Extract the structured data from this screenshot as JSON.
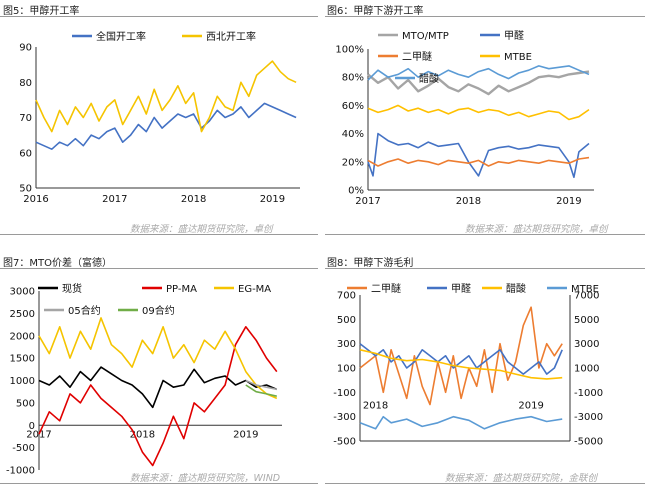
{
  "titles": {
    "p5": "图5：甲醇开工率",
    "p6": "图6：甲醇下游开工率",
    "p7": "图7：MTO价差（富德）",
    "p8": "图8：甲醇下游毛利"
  },
  "sources": {
    "top_left": "数据来源：盛达期货研究院，卓创",
    "top_right": "数据来源：盛达期货研究院，卓创",
    "bottom_left": "数据来源：盛达期货研究院，WIND",
    "bottom_right": "数据来源：盛达期货研究院，金联创"
  },
  "chart_data": [
    {
      "id": "p5",
      "type": "line",
      "ylim": [
        50,
        90
      ],
      "yticks": [
        "50",
        "60",
        "70",
        "80",
        "90"
      ],
      "xticks": [
        "2016",
        "2017",
        "2018",
        "2019"
      ],
      "xrange": [
        2016,
        2019.35
      ],
      "series": [
        {
          "name": "全国开工率",
          "color": "#4472c4",
          "x": [
            2016,
            2016.1,
            2016.2,
            2016.3,
            2016.4,
            2016.5,
            2016.6,
            2016.7,
            2016.8,
            2016.9,
            2017,
            2017.1,
            2017.2,
            2017.3,
            2017.4,
            2017.5,
            2017.6,
            2017.7,
            2017.8,
            2017.9,
            2018,
            2018.1,
            2018.2,
            2018.3,
            2018.4,
            2018.5,
            2018.6,
            2018.7,
            2018.8,
            2018.9,
            2019,
            2019.1,
            2019.2,
            2019.3
          ],
          "y": [
            63,
            62,
            61,
            63,
            62,
            64,
            62,
            65,
            64,
            66,
            67,
            63,
            65,
            68,
            66,
            70,
            67,
            69,
            71,
            70,
            71,
            67,
            69,
            72,
            70,
            71,
            73,
            70,
            72,
            74,
            73,
            72,
            71,
            70
          ]
        },
        {
          "name": "西北开工率",
          "color": "#f5c400",
          "x": [
            2016,
            2016.1,
            2016.2,
            2016.3,
            2016.4,
            2016.5,
            2016.6,
            2016.7,
            2016.8,
            2016.9,
            2017,
            2017.1,
            2017.2,
            2017.3,
            2017.4,
            2017.5,
            2017.6,
            2017.7,
            2017.8,
            2017.9,
            2018,
            2018.1,
            2018.2,
            2018.3,
            2018.4,
            2018.5,
            2018.6,
            2018.7,
            2018.8,
            2018.9,
            2019,
            2019.1,
            2019.2,
            2019.3
          ],
          "y": [
            75,
            70,
            66,
            72,
            68,
            73,
            70,
            74,
            69,
            73,
            75,
            68,
            72,
            76,
            71,
            78,
            72,
            75,
            79,
            74,
            77,
            66,
            70,
            76,
            73,
            72,
            80,
            76,
            82,
            84,
            86,
            83,
            81,
            80
          ]
        }
      ]
    },
    {
      "id": "p6",
      "type": "line",
      "ylim": [
        0,
        100
      ],
      "yticks": [
        "0%",
        "20%",
        "40%",
        "60%",
        "80%",
        "100%"
      ],
      "xticks": [
        "2017",
        "2018",
        "2019"
      ],
      "xrange": [
        2017,
        2019.25
      ],
      "series": [
        {
          "name": "MTO/MTP",
          "color": "#a5a5a5",
          "x": [
            2017,
            2017.1,
            2017.2,
            2017.3,
            2017.4,
            2017.5,
            2017.6,
            2017.7,
            2017.8,
            2017.9,
            2018,
            2018.1,
            2018.2,
            2018.3,
            2018.4,
            2018.5,
            2018.6,
            2018.7,
            2018.8,
            2018.9,
            2019,
            2019.1,
            2019.2
          ],
          "y": [
            82,
            76,
            80,
            72,
            78,
            70,
            74,
            79,
            73,
            70,
            75,
            72,
            68,
            74,
            70,
            73,
            76,
            80,
            81,
            80,
            82,
            83,
            84
          ]
        },
        {
          "name": "甲醛",
          "color": "#4472c4",
          "x": [
            2017,
            2017.05,
            2017.1,
            2017.2,
            2017.3,
            2017.4,
            2017.5,
            2017.6,
            2017.7,
            2017.8,
            2017.9,
            2018,
            2018.1,
            2018.2,
            2018.3,
            2018.4,
            2018.5,
            2018.6,
            2018.7,
            2018.8,
            2018.9,
            2019,
            2019.05,
            2019.1,
            2019.2
          ],
          "y": [
            20,
            10,
            40,
            35,
            32,
            33,
            30,
            34,
            31,
            32,
            33,
            20,
            10,
            28,
            30,
            31,
            29,
            30,
            32,
            31,
            30,
            20,
            9,
            27,
            33
          ]
        },
        {
          "name": "二甲醚",
          "color": "#ed7d31",
          "x": [
            2017,
            2017.1,
            2017.2,
            2017.3,
            2017.4,
            2017.5,
            2017.6,
            2017.7,
            2017.8,
            2017.9,
            2018,
            2018.1,
            2018.2,
            2018.3,
            2018.4,
            2018.5,
            2018.6,
            2018.7,
            2018.8,
            2018.9,
            2019,
            2019.1,
            2019.2
          ],
          "y": [
            21,
            17,
            20,
            22,
            19,
            21,
            20,
            18,
            21,
            20,
            19,
            21,
            17,
            20,
            19,
            21,
            20,
            19,
            21,
            20,
            19,
            22,
            23
          ]
        },
        {
          "name": "MTBE",
          "color": "#ffc000",
          "x": [
            2017,
            2017.1,
            2017.2,
            2017.3,
            2017.4,
            2017.5,
            2017.6,
            2017.7,
            2017.8,
            2017.9,
            2018,
            2018.1,
            2018.2,
            2018.3,
            2018.4,
            2018.5,
            2018.6,
            2018.7,
            2018.8,
            2018.9,
            2019,
            2019.1,
            2019.2
          ],
          "y": [
            58,
            55,
            57,
            60,
            56,
            58,
            55,
            57,
            54,
            57,
            58,
            55,
            57,
            56,
            53,
            55,
            52,
            54,
            56,
            55,
            50,
            52,
            57
          ]
        },
        {
          "name": "醋酸",
          "color": "#5b9bd5",
          "x": [
            2017,
            2017.1,
            2017.2,
            2017.3,
            2017.4,
            2017.5,
            2017.6,
            2017.7,
            2017.8,
            2017.9,
            2018,
            2018.1,
            2018.2,
            2018.3,
            2018.4,
            2018.5,
            2018.6,
            2018.7,
            2018.8,
            2018.9,
            2019,
            2019.1,
            2019.2
          ],
          "y": [
            78,
            85,
            80,
            82,
            86,
            80,
            84,
            81,
            85,
            82,
            80,
            84,
            86,
            82,
            79,
            83,
            85,
            88,
            86,
            87,
            88,
            85,
            82
          ]
        }
      ]
    },
    {
      "id": "p7",
      "type": "line",
      "ylim": [
        -1000,
        3000
      ],
      "yticks": [
        "-1000",
        "-500",
        "0",
        "500",
        "1000",
        "1500",
        "2000",
        "2500",
        "3000"
      ],
      "xticks": [
        "2017",
        "2018",
        "2019"
      ],
      "xrange": [
        2017,
        2019.35
      ],
      "series": [
        {
          "name": "现货",
          "color": "#000000",
          "x": [
            2017,
            2017.1,
            2017.2,
            2017.3,
            2017.4,
            2017.5,
            2017.6,
            2017.7,
            2017.8,
            2017.9,
            2018,
            2018.1,
            2018.2,
            2018.3,
            2018.4,
            2018.5,
            2018.6,
            2018.7,
            2018.8,
            2018.9,
            2019,
            2019.1,
            2019.2,
            2019.3
          ],
          "y": [
            1000,
            900,
            1100,
            850,
            1200,
            1000,
            1300,
            1150,
            1000,
            900,
            700,
            400,
            1000,
            850,
            900,
            1250,
            950,
            1050,
            1100,
            900,
            1000,
            850,
            900,
            800
          ]
        },
        {
          "name": "PP-MA",
          "color": "#e00000",
          "x": [
            2017,
            2017.1,
            2017.2,
            2017.3,
            2017.4,
            2017.5,
            2017.6,
            2017.7,
            2017.8,
            2017.9,
            2018,
            2018.1,
            2018.2,
            2018.3,
            2018.4,
            2018.5,
            2018.6,
            2018.7,
            2018.8,
            2018.9,
            2019,
            2019.1,
            2019.2,
            2019.3
          ],
          "y": [
            -200,
            300,
            100,
            700,
            500,
            900,
            600,
            400,
            200,
            -100,
            -600,
            -900,
            -400,
            200,
            -300,
            500,
            300,
            600,
            900,
            1800,
            2200,
            1900,
            1500,
            1200
          ]
        },
        {
          "name": "EG-MA",
          "color": "#f5c400",
          "x": [
            2017,
            2017.1,
            2017.2,
            2017.3,
            2017.4,
            2017.5,
            2017.6,
            2017.7,
            2017.8,
            2017.9,
            2018,
            2018.1,
            2018.2,
            2018.3,
            2018.4,
            2018.5,
            2018.6,
            2018.7,
            2018.8,
            2018.9,
            2019,
            2019.1,
            2019.2,
            2019.3
          ],
          "y": [
            2000,
            1600,
            2200,
            1500,
            2100,
            1700,
            2400,
            1800,
            1600,
            1300,
            1900,
            1600,
            2200,
            1500,
            1800,
            1400,
            1900,
            1700,
            2100,
            1700,
            1200,
            900,
            700,
            600
          ]
        },
        {
          "name": "05合约",
          "color": "#a5a5a5",
          "x": [
            2019,
            2019.1,
            2019.2,
            2019.3
          ],
          "y": [
            1000,
            900,
            850,
            800
          ]
        },
        {
          "name": "09合约",
          "color": "#70ad47",
          "x": [
            2019,
            2019.1,
            2019.2,
            2019.3
          ],
          "y": [
            900,
            750,
            700,
            650
          ]
        }
      ]
    },
    {
      "id": "p8",
      "type": "line",
      "ylim": [
        -500,
        700
      ],
      "y2lim": [
        -5000,
        7000
      ],
      "yticks": [
        "-500",
        "-300",
        "-100",
        "100",
        "300",
        "500",
        "700"
      ],
      "y2ticks": [
        "-5000",
        "-3000",
        "-1000",
        "1000",
        "3000",
        "5000",
        "7000"
      ],
      "xticks": [
        "2018",
        "2019"
      ],
      "xrange": [
        2017.9,
        2019.25
      ],
      "series": [
        {
          "name": "二甲醚",
          "color": "#ed7d31",
          "axis": "left",
          "x": [
            2017.9,
            2018,
            2018.05,
            2018.1,
            2018.15,
            2018.2,
            2018.25,
            2018.3,
            2018.35,
            2018.4,
            2018.45,
            2018.5,
            2018.55,
            2018.6,
            2018.65,
            2018.7,
            2018.75,
            2018.8,
            2018.85,
            2018.9,
            2018.95,
            2019,
            2019.05,
            2019.1,
            2019.15,
            2019.2
          ],
          "y": [
            100,
            200,
            -100,
            250,
            50,
            -150,
            200,
            -50,
            -200,
            150,
            -100,
            200,
            -150,
            100,
            -50,
            250,
            -100,
            300,
            0,
            150,
            450,
            600,
            100,
            300,
            200,
            300
          ]
        },
        {
          "name": "甲醛",
          "color": "#4472c4",
          "axis": "left",
          "x": [
            2017.9,
            2018,
            2018.05,
            2018.1,
            2018.15,
            2018.2,
            2018.25,
            2018.3,
            2018.35,
            2018.4,
            2018.45,
            2018.5,
            2018.55,
            2018.6,
            2018.65,
            2018.7,
            2018.75,
            2018.8,
            2018.85,
            2018.9,
            2018.95,
            2019,
            2019.05,
            2019.1,
            2019.15,
            2019.2
          ],
          "y": [
            300,
            200,
            250,
            150,
            200,
            100,
            150,
            250,
            200,
            150,
            200,
            100,
            150,
            200,
            100,
            150,
            200,
            250,
            150,
            100,
            50,
            100,
            150,
            50,
            100,
            250
          ]
        },
        {
          "name": "醋酸",
          "color": "#ffc000",
          "axis": "right",
          "x": [
            2017.9,
            2018,
            2018.1,
            2018.2,
            2018.3,
            2018.4,
            2018.5,
            2018.6,
            2018.7,
            2018.8,
            2018.9,
            2019,
            2019.1,
            2019.2
          ],
          "y": [
            2500,
            2200,
            1800,
            1600,
            1700,
            1500,
            1200,
            1000,
            900,
            800,
            500,
            200,
            100,
            200
          ]
        },
        {
          "name": "MTBE",
          "color": "#5b9bd5",
          "axis": "right",
          "x": [
            2017.9,
            2018,
            2018.05,
            2018.1,
            2018.2,
            2018.3,
            2018.4,
            2018.5,
            2018.6,
            2018.7,
            2018.8,
            2018.9,
            2019,
            2019.1,
            2019.2
          ],
          "y": [
            -3500,
            -4000,
            -3000,
            -3500,
            -3200,
            -3800,
            -3500,
            -3000,
            -3300,
            -4000,
            -3500,
            -3200,
            -3000,
            -3400,
            -3200
          ]
        }
      ]
    }
  ]
}
